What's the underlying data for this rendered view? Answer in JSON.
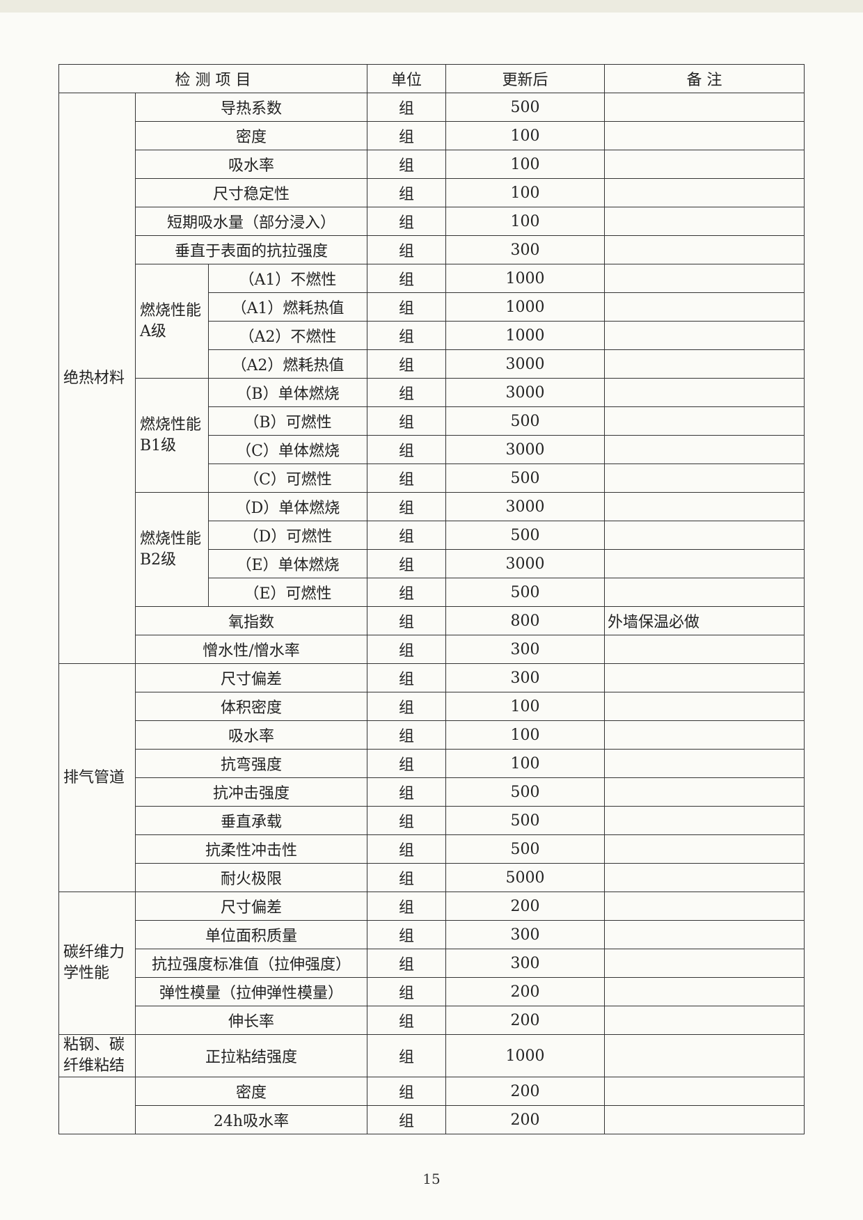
{
  "table": {
    "header": [
      "检 测 项 目",
      "单位",
      "更新后",
      "备 注"
    ],
    "groups": [
      {
        "label": "绝热材料",
        "rows": [
          {
            "item": "导热系数",
            "unit": "组",
            "value": 500
          },
          {
            "item": "密度",
            "unit": "组",
            "value": 100
          },
          {
            "item": "吸水率",
            "unit": "组",
            "value": 100
          },
          {
            "item": "尺寸稳定性",
            "unit": "组",
            "value": 100
          },
          {
            "item": "短期吸水量（部分浸入）",
            "unit": "组",
            "value": 100
          },
          {
            "item": "垂直于表面的抗拉强度",
            "unit": "组",
            "value": 300
          },
          {
            "label": "燃烧性能A级",
            "rows": [
              {
                "item": "（A1）不燃性",
                "unit": "组",
                "value": 1000
              },
              {
                "item": "（A1）燃耗热值",
                "unit": "组",
                "value": 1000
              },
              {
                "item": "（A2）不燃性",
                "unit": "组",
                "value": 1000
              },
              {
                "item": "（A2）燃耗热值",
                "unit": "组",
                "value": 3000
              }
            ]
          },
          {
            "label": "燃烧性能B1级",
            "rows": [
              {
                "item": "（B）单体燃烧",
                "unit": "组",
                "value": 3000
              },
              {
                "item": "（B）可燃性",
                "unit": "组",
                "value": 500
              },
              {
                "item": "（C）单体燃烧",
                "unit": "组",
                "value": 3000
              },
              {
                "item": "（C）可燃性",
                "unit": "组",
                "value": 500
              }
            ]
          },
          {
            "label": "燃烧性能B2级",
            "rows": [
              {
                "item": "（D）单体燃烧",
                "unit": "组",
                "value": 3000
              },
              {
                "item": "（D）可燃性",
                "unit": "组",
                "value": 500
              },
              {
                "item": "（E）单体燃烧",
                "unit": "组",
                "value": 3000
              },
              {
                "item": "（E）可燃性",
                "unit": "组",
                "value": 500
              }
            ]
          },
          {
            "item": "氧指数",
            "unit": "组",
            "value": 800,
            "note": "外墙保温必做"
          },
          {
            "item": "憎水性/憎水率",
            "unit": "组",
            "value": 300
          }
        ]
      },
      {
        "label": "排气管道",
        "rows": [
          {
            "item": "尺寸偏差",
            "unit": "组",
            "value": 300
          },
          {
            "item": "体积密度",
            "unit": "组",
            "value": 100
          },
          {
            "item": "吸水率",
            "unit": "组",
            "value": 100
          },
          {
            "item": "抗弯强度",
            "unit": "组",
            "value": 100
          },
          {
            "item": "抗冲击强度",
            "unit": "组",
            "value": 500
          },
          {
            "item": "垂直承载",
            "unit": "组",
            "value": 500
          },
          {
            "item": "抗柔性冲击性",
            "unit": "组",
            "value": 500
          },
          {
            "item": "耐火极限",
            "unit": "组",
            "value": 5000
          }
        ]
      },
      {
        "label": "碳纤维力学性能",
        "rows": [
          {
            "item": "尺寸偏差",
            "unit": "组",
            "value": 200
          },
          {
            "item": "单位面积质量",
            "unit": "组",
            "value": 300
          },
          {
            "item": "抗拉强度标准值（拉伸强度）",
            "unit": "组",
            "value": 300
          },
          {
            "item": "弹性模量（拉伸弹性模量）",
            "unit": "组",
            "value": 200
          },
          {
            "item": "伸长率",
            "unit": "组",
            "value": 200
          }
        ]
      },
      {
        "label": "粘钢、碳纤维粘结",
        "rows": [
          {
            "item": "正拉粘结强度",
            "unit": "组",
            "value": 1000
          }
        ]
      },
      {
        "rows": [
          {
            "item": "密度",
            "unit": "组",
            "value": 200
          },
          {
            "item": "24h吸水率",
            "unit": "组",
            "value": 200
          }
        ]
      }
    ]
  },
  "page_number": "15"
}
